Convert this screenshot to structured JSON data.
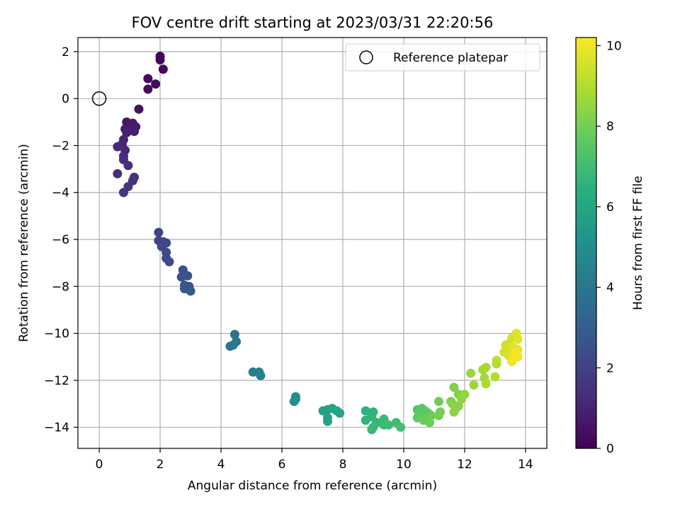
{
  "chart_data": {
    "type": "scatter",
    "title": "FOV centre drift starting at 2023/03/31 22:20:56",
    "xlabel": "Angular distance from reference (arcmin)",
    "ylabel": "Rotation from reference (arcmin)",
    "xlim": [
      -0.7,
      14.7
    ],
    "ylim": [
      -14.9,
      2.6
    ],
    "xticks": [
      0,
      2,
      4,
      6,
      8,
      10,
      12,
      14
    ],
    "xtick_labels": [
      "0",
      "2",
      "4",
      "6",
      "8",
      "10",
      "12",
      "14"
    ],
    "yticks": [
      2,
      0,
      -2,
      -4,
      -6,
      -8,
      -10,
      -12,
      -14
    ],
    "ytick_labels": [
      "2",
      "0",
      "−2",
      "−4",
      "−6",
      "−8",
      "−10",
      "−12",
      "−14"
    ],
    "grid": true,
    "legend": {
      "placement": "top-right",
      "entries": [
        "Reference platepar"
      ]
    },
    "reference_point": {
      "x": 0,
      "y": 0
    },
    "colorbar": {
      "label": "Hours from first FF file",
      "range": [
        0,
        10.2
      ],
      "ticks": [
        0,
        2,
        4,
        6,
        8,
        10
      ],
      "tick_labels": [
        "0",
        "2",
        "4",
        "6",
        "8",
        "10"
      ],
      "colormap": "viridis"
    },
    "points": [
      [
        2.0,
        1.8,
        0.1
      ],
      [
        2.0,
        1.65,
        0.15
      ],
      [
        2.1,
        1.25,
        0.2
      ],
      [
        1.6,
        0.85,
        0.25
      ],
      [
        1.85,
        0.62,
        0.3
      ],
      [
        1.6,
        0.4,
        0.35
      ],
      [
        1.3,
        -0.45,
        0.5
      ],
      [
        0.9,
        -1.0,
        0.6
      ],
      [
        1.1,
        -1.05,
        0.65
      ],
      [
        0.95,
        -1.15,
        0.7
      ],
      [
        1.2,
        -1.2,
        0.75
      ],
      [
        0.85,
        -1.3,
        0.8
      ],
      [
        1.0,
        -1.35,
        0.85
      ],
      [
        1.15,
        -1.4,
        0.9
      ],
      [
        0.9,
        -1.45,
        0.95
      ],
      [
        0.8,
        -1.75,
        1.0
      ],
      [
        0.75,
        -1.95,
        1.05
      ],
      [
        0.6,
        -2.05,
        1.1
      ],
      [
        0.85,
        -2.2,
        1.15
      ],
      [
        0.8,
        -2.45,
        1.2
      ],
      [
        0.8,
        -2.6,
        1.25
      ],
      [
        0.95,
        -2.85,
        1.3
      ],
      [
        0.6,
        -3.2,
        1.35
      ],
      [
        1.15,
        -3.35,
        1.4
      ],
      [
        1.1,
        -3.5,
        1.45
      ],
      [
        0.95,
        -3.75,
        1.5
      ],
      [
        0.8,
        -4.0,
        1.55
      ],
      [
        1.95,
        -5.7,
        2.0
      ],
      [
        1.95,
        -6.05,
        2.05
      ],
      [
        2.1,
        -6.1,
        2.1
      ],
      [
        2.2,
        -6.15,
        2.15
      ],
      [
        2.05,
        -6.3,
        2.2
      ],
      [
        2.2,
        -6.55,
        2.25
      ],
      [
        2.2,
        -6.8,
        2.3
      ],
      [
        2.3,
        -6.95,
        2.35
      ],
      [
        2.75,
        -7.3,
        2.5
      ],
      [
        2.9,
        -7.55,
        2.55
      ],
      [
        2.7,
        -7.6,
        2.6
      ],
      [
        2.8,
        -7.95,
        2.65
      ],
      [
        2.95,
        -8.0,
        2.7
      ],
      [
        2.8,
        -8.1,
        2.75
      ],
      [
        3.0,
        -8.2,
        2.8
      ],
      [
        4.45,
        -10.05,
        3.8
      ],
      [
        4.5,
        -10.35,
        3.85
      ],
      [
        4.4,
        -10.5,
        3.9
      ],
      [
        4.3,
        -10.55,
        3.95
      ],
      [
        5.05,
        -11.65,
        4.3
      ],
      [
        5.25,
        -11.65,
        4.35
      ],
      [
        5.3,
        -11.8,
        4.4
      ],
      [
        6.45,
        -12.7,
        5.0
      ],
      [
        6.45,
        -12.8,
        5.05
      ],
      [
        6.4,
        -12.9,
        5.1
      ],
      [
        7.35,
        -13.3,
        5.7
      ],
      [
        7.5,
        -13.25,
        5.75
      ],
      [
        7.65,
        -13.2,
        5.8
      ],
      [
        7.5,
        -13.6,
        5.85
      ],
      [
        7.5,
        -13.75,
        5.9
      ],
      [
        7.8,
        -13.3,
        5.95
      ],
      [
        7.9,
        -13.4,
        6.0
      ],
      [
        8.75,
        -13.3,
        6.5
      ],
      [
        9.0,
        -13.35,
        6.55
      ],
      [
        8.75,
        -13.7,
        6.6
      ],
      [
        8.95,
        -13.55,
        6.65
      ],
      [
        9.1,
        -13.8,
        6.7
      ],
      [
        9.0,
        -14.0,
        6.75
      ],
      [
        8.95,
        -14.1,
        6.8
      ],
      [
        9.35,
        -13.65,
        6.85
      ],
      [
        9.35,
        -13.9,
        6.9
      ],
      [
        9.5,
        -13.9,
        6.95
      ],
      [
        9.75,
        -13.8,
        7.0
      ],
      [
        9.9,
        -14.0,
        7.05
      ],
      [
        10.45,
        -13.25,
        7.4
      ],
      [
        10.6,
        -13.2,
        7.45
      ],
      [
        10.7,
        -13.3,
        7.5
      ],
      [
        10.5,
        -13.45,
        7.55
      ],
      [
        10.8,
        -13.4,
        7.6
      ],
      [
        10.45,
        -13.6,
        7.65
      ],
      [
        10.6,
        -13.6,
        7.7
      ],
      [
        10.75,
        -13.65,
        7.75
      ],
      [
        10.65,
        -13.7,
        7.8
      ],
      [
        10.9,
        -13.5,
        7.85
      ],
      [
        10.85,
        -13.8,
        7.9
      ],
      [
        11.15,
        -12.9,
        7.95
      ],
      [
        11.2,
        -13.35,
        8.0
      ],
      [
        11.15,
        -13.5,
        8.05
      ],
      [
        11.55,
        -12.9,
        8.1
      ],
      [
        11.65,
        -12.3,
        8.15
      ],
      [
        11.8,
        -12.6,
        8.2
      ],
      [
        11.6,
        -13.0,
        8.25
      ],
      [
        11.7,
        -13.2,
        8.3
      ],
      [
        11.8,
        -13.1,
        8.35
      ],
      [
        11.65,
        -13.35,
        8.4
      ],
      [
        11.9,
        -12.8,
        8.45
      ],
      [
        12.0,
        -12.6,
        8.5
      ],
      [
        12.2,
        -11.7,
        8.6
      ],
      [
        12.3,
        -12.2,
        8.65
      ],
      [
        12.6,
        -11.55,
        8.75
      ],
      [
        12.7,
        -11.45,
        8.8
      ],
      [
        12.65,
        -11.9,
        8.85
      ],
      [
        12.7,
        -12.15,
        8.9
      ],
      [
        13.0,
        -11.85,
        9.0
      ],
      [
        13.05,
        -11.3,
        9.05
      ],
      [
        13.05,
        -11.15,
        9.1
      ],
      [
        13.35,
        -10.5,
        9.4
      ],
      [
        13.45,
        -10.45,
        9.45
      ],
      [
        13.3,
        -10.8,
        9.5
      ],
      [
        13.55,
        -10.2,
        9.55
      ],
      [
        13.5,
        -10.7,
        9.6
      ],
      [
        13.45,
        -10.95,
        9.65
      ],
      [
        13.7,
        -10.0,
        9.7
      ],
      [
        13.75,
        -10.25,
        9.75
      ],
      [
        13.6,
        -10.6,
        9.8
      ],
      [
        13.75,
        -10.7,
        9.85
      ],
      [
        13.6,
        -11.0,
        9.9
      ],
      [
        13.75,
        -11.0,
        9.95
      ],
      [
        13.55,
        -11.2,
        10.0
      ],
      [
        13.65,
        -10.85,
        10.05
      ]
    ]
  }
}
